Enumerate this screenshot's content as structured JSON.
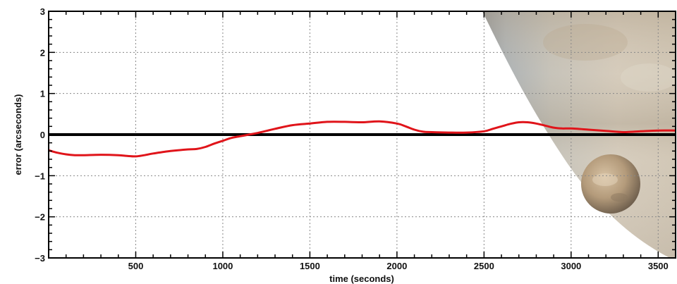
{
  "chart_data": {
    "type": "line",
    "title": "",
    "xlabel": "time (seconds)",
    "ylabel": "error (arcseconds)",
    "xlim": [
      0,
      3600
    ],
    "ylim": [
      -3,
      3
    ],
    "x_ticks": [
      500,
      1000,
      1500,
      2000,
      2500,
      3000,
      3500
    ],
    "y_ticks": [
      -3,
      -2,
      -1,
      0,
      1,
      2,
      3
    ],
    "x_tick_labels": [
      "500",
      "1000",
      "1500",
      "2000",
      "2500",
      "3000",
      "3500"
    ],
    "y_tick_labels": [
      "−3",
      "−2",
      "−1",
      "0",
      "1",
      "2",
      "3"
    ],
    "grid": true,
    "reference_line_y": 0,
    "series": [
      {
        "color": "#e0141a",
        "x": [
          0,
          50,
          100,
          150,
          200,
          300,
          400,
          450,
          500,
          550,
          600,
          700,
          800,
          850,
          900,
          950,
          1000,
          1050,
          1100,
          1150,
          1200,
          1300,
          1400,
          1500,
          1600,
          1700,
          1800,
          1900,
          2000,
          2050,
          2100,
          2150,
          2200,
          2300,
          2400,
          2500,
          2550,
          2600,
          2650,
          2700,
          2750,
          2800,
          2850,
          2900,
          2950,
          3000,
          3100,
          3200,
          3300,
          3400,
          3500,
          3600
        ],
        "y": [
          -0.38,
          -0.44,
          -0.48,
          -0.5,
          -0.5,
          -0.49,
          -0.5,
          -0.52,
          -0.53,
          -0.5,
          -0.46,
          -0.4,
          -0.36,
          -0.35,
          -0.3,
          -0.22,
          -0.15,
          -0.08,
          -0.04,
          0.0,
          0.04,
          0.14,
          0.23,
          0.27,
          0.31,
          0.31,
          0.3,
          0.32,
          0.27,
          0.2,
          0.12,
          0.07,
          0.06,
          0.05,
          0.05,
          0.08,
          0.14,
          0.2,
          0.26,
          0.3,
          0.3,
          0.27,
          0.22,
          0.17,
          0.15,
          0.15,
          0.12,
          0.09,
          0.06,
          0.08,
          0.1,
          0.1
        ]
      }
    ],
    "background_colors": {
      "planet_dark": "#9aa3ab",
      "planet_mid": "#c9c3b6",
      "planet_light": "#d6ccbd",
      "moon": "#b89f80"
    }
  }
}
